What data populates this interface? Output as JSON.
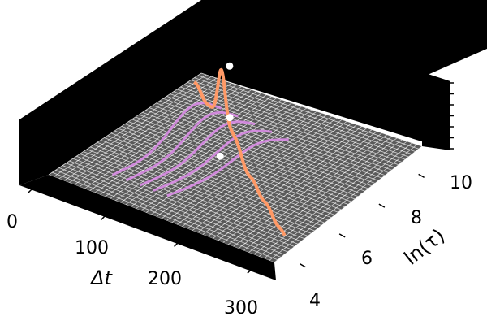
{
  "chart_data": {
    "type": "line",
    "projection": "3d",
    "xlabel": "Δt",
    "ylabel": "ln(τ)",
    "x_ticks": [
      0,
      100,
      200,
      300
    ],
    "y_ticks": [
      4,
      6,
      8,
      10
    ],
    "xlim": [
      0,
      330
    ],
    "ylim": [
      3,
      11
    ],
    "colors": {
      "pane": "#000000",
      "floor": "#5a5a5a",
      "grid": "#ffffff",
      "main_curve": "#ff9966",
      "slice_curves": "#d98ce6",
      "markers": "#ffffff"
    },
    "grid": true,
    "marker_points": [
      {
        "x": 110,
        "y": 8.6
      },
      {
        "x": 130,
        "y": 7.9
      },
      {
        "x": 160,
        "y": 6.3
      }
    ]
  }
}
